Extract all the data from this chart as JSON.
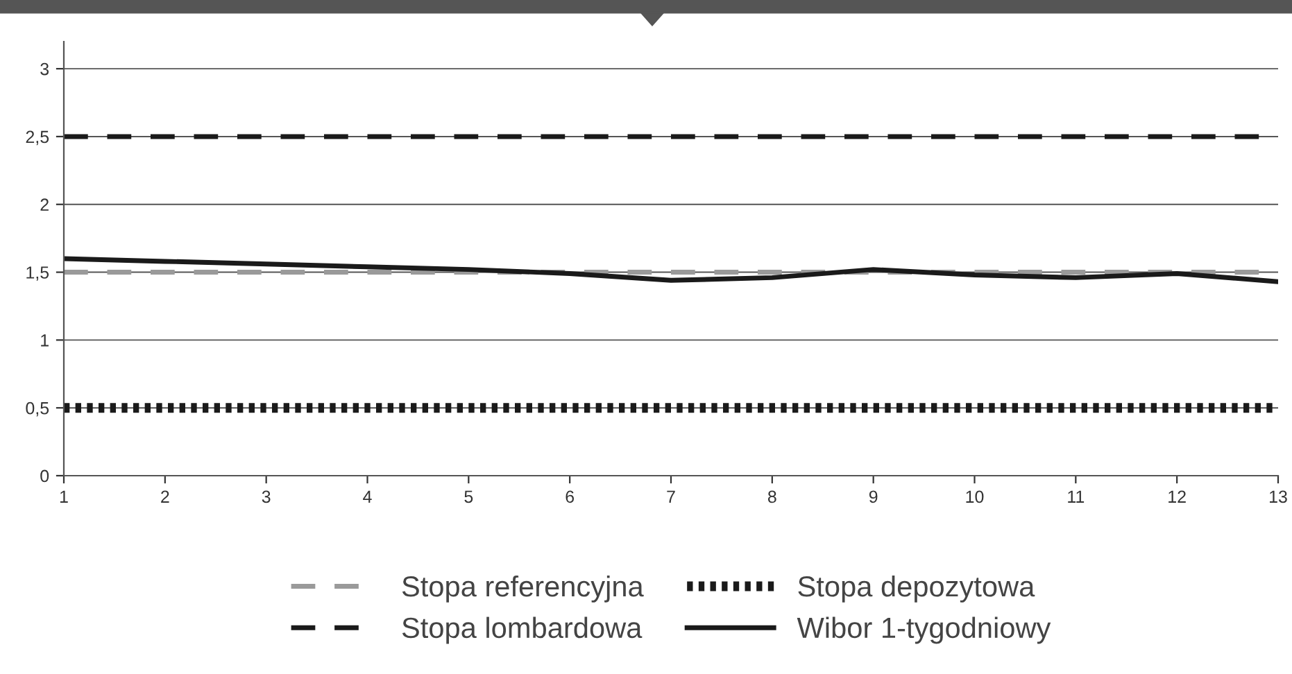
{
  "chart_data": {
    "type": "line",
    "x": [
      1,
      2,
      3,
      4,
      5,
      6,
      7,
      8,
      9,
      10,
      11,
      12,
      13
    ],
    "series": [
      {
        "name": "Stopa referencyjna",
        "color": "#9a9a9a",
        "line_style": "dashed",
        "values": [
          1.5,
          1.5,
          1.5,
          1.5,
          1.5,
          1.5,
          1.5,
          1.5,
          1.5,
          1.5,
          1.5,
          1.5,
          1.5
        ]
      },
      {
        "name": "Stopa lombardowa",
        "color": "#1a1a1a",
        "line_style": "dashed",
        "values": [
          2.5,
          2.5,
          2.5,
          2.5,
          2.5,
          2.5,
          2.5,
          2.5,
          2.5,
          2.5,
          2.5,
          2.5,
          2.5
        ]
      },
      {
        "name": "Stopa depozytowa",
        "color": "#1a1a1a",
        "line_style": "dotted",
        "values": [
          0.5,
          0.5,
          0.5,
          0.5,
          0.5,
          0.5,
          0.5,
          0.5,
          0.5,
          0.5,
          0.5,
          0.5,
          0.5
        ]
      },
      {
        "name": "Wibor 1-tygodniowy",
        "color": "#1a1a1a",
        "line_style": "solid",
        "values": [
          1.6,
          1.58,
          1.56,
          1.54,
          1.52,
          1.49,
          1.44,
          1.46,
          1.52,
          1.48,
          1.46,
          1.49,
          1.43
        ]
      }
    ],
    "xlim": [
      1,
      13
    ],
    "xticks": [
      1,
      2,
      3,
      4,
      5,
      6,
      7,
      8,
      9,
      10,
      11,
      12,
      13
    ],
    "ylim": [
      0,
      3.2
    ],
    "yticks": [
      0,
      {
        "value": 0.5,
        "label": "0,5"
      },
      1,
      {
        "value": 1.5,
        "label": "1,5"
      },
      2,
      {
        "value": 2.5,
        "label": "2,5"
      },
      3
    ],
    "grid": "y",
    "legend": "bottom",
    "marker": "none"
  }
}
